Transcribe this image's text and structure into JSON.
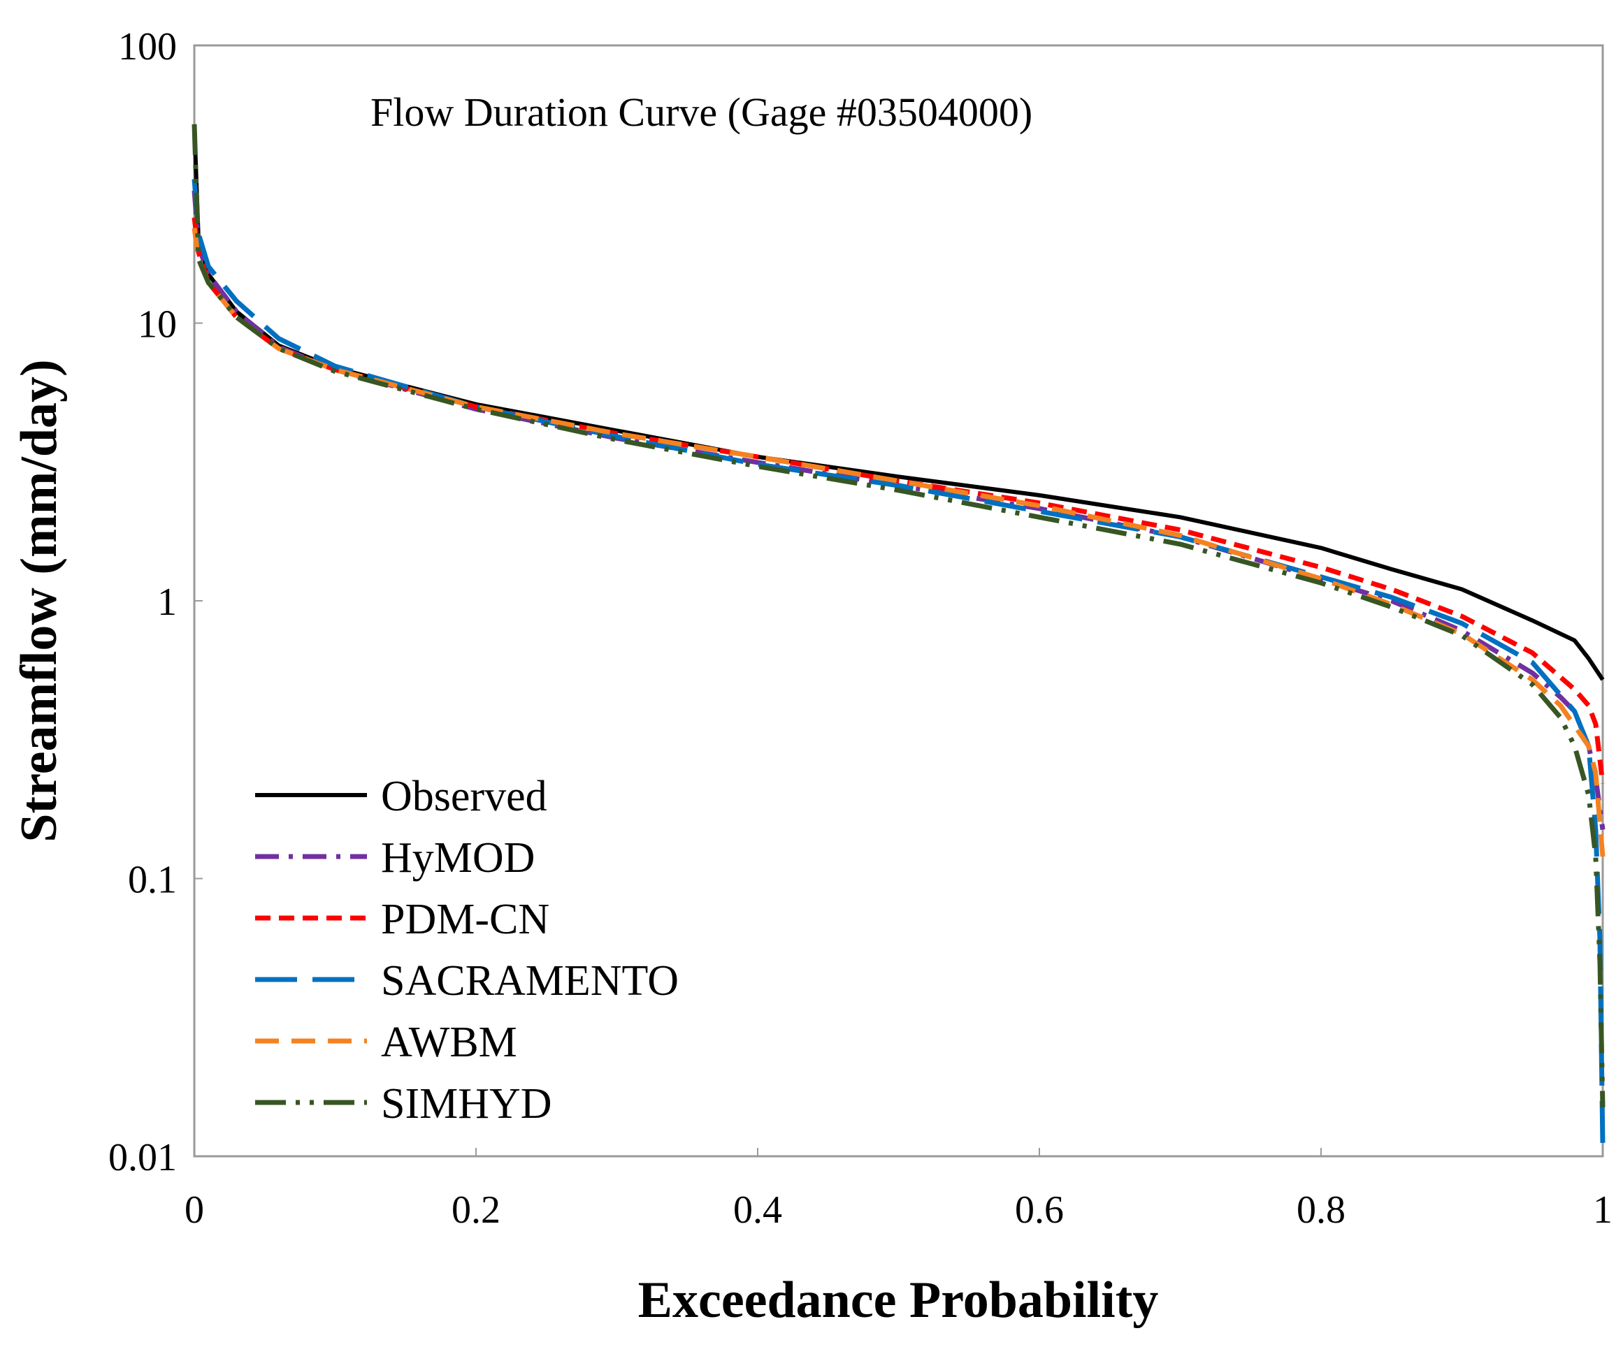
{
  "chart_data": {
    "type": "line",
    "title": "Flow Duration Curve (Gage #03504000)",
    "xlabel": "Exceedance Probability",
    "ylabel": "Streamflow (mm/day)",
    "x_scale": "linear",
    "y_scale": "log",
    "xlim": [
      0,
      1
    ],
    "ylim": [
      0.01,
      100
    ],
    "x_ticks": [
      0,
      0.2,
      0.4,
      0.6,
      0.8,
      1
    ],
    "x_tick_labels": [
      "0",
      "0.2",
      "0.4",
      "0.6",
      "0.8",
      "1"
    ],
    "y_ticks": [
      0.01,
      0.1,
      1,
      10,
      100
    ],
    "y_tick_labels": [
      "0.01",
      "0.1",
      "1",
      "10",
      "100"
    ],
    "grid": false,
    "legend_position": "bottom-left",
    "series": [
      {
        "name": "Observed",
        "color": "#000000",
        "dash": "solid",
        "points": [
          [
            0,
            52
          ],
          [
            0.003,
            20
          ],
          [
            0.01,
            15
          ],
          [
            0.03,
            11
          ],
          [
            0.06,
            8.3
          ],
          [
            0.1,
            6.9
          ],
          [
            0.2,
            5.1
          ],
          [
            0.3,
            4.1
          ],
          [
            0.4,
            3.3
          ],
          [
            0.5,
            2.8
          ],
          [
            0.6,
            2.4
          ],
          [
            0.7,
            2.0
          ],
          [
            0.8,
            1.55
          ],
          [
            0.85,
            1.3
          ],
          [
            0.9,
            1.1
          ],
          [
            0.95,
            0.85
          ],
          [
            0.98,
            0.72
          ],
          [
            0.99,
            0.62
          ],
          [
            1.0,
            0.52
          ]
        ]
      },
      {
        "name": "HyMOD",
        "color": "#7030a0",
        "dash": "dashdot",
        "points": [
          [
            0,
            30
          ],
          [
            0.003,
            19
          ],
          [
            0.01,
            15
          ],
          [
            0.03,
            11
          ],
          [
            0.06,
            8.2
          ],
          [
            0.1,
            6.8
          ],
          [
            0.2,
            4.9
          ],
          [
            0.3,
            3.85
          ],
          [
            0.4,
            3.15
          ],
          [
            0.5,
            2.6
          ],
          [
            0.6,
            2.15
          ],
          [
            0.7,
            1.7
          ],
          [
            0.8,
            1.2
          ],
          [
            0.85,
            1.0
          ],
          [
            0.9,
            0.78
          ],
          [
            0.95,
            0.55
          ],
          [
            0.97,
            0.45
          ],
          [
            0.98,
            0.4
          ],
          [
            0.99,
            0.3
          ],
          [
            0.995,
            0.23
          ],
          [
            1.0,
            0.15
          ]
        ]
      },
      {
        "name": "PDM-CN",
        "color": "#ff0000",
        "dash": "dash",
        "points": [
          [
            0,
            24
          ],
          [
            0.003,
            18
          ],
          [
            0.01,
            14
          ],
          [
            0.03,
            10.5
          ],
          [
            0.06,
            8.1
          ],
          [
            0.1,
            6.8
          ],
          [
            0.2,
            5.0
          ],
          [
            0.3,
            4.0
          ],
          [
            0.4,
            3.3
          ],
          [
            0.5,
            2.7
          ],
          [
            0.6,
            2.25
          ],
          [
            0.7,
            1.8
          ],
          [
            0.8,
            1.32
          ],
          [
            0.85,
            1.1
          ],
          [
            0.9,
            0.88
          ],
          [
            0.95,
            0.65
          ],
          [
            0.98,
            0.48
          ],
          [
            0.99,
            0.42
          ],
          [
            0.995,
            0.36
          ],
          [
            1.0,
            0.22
          ]
        ]
      },
      {
        "name": "SACRAMENTO",
        "color": "#0070c0",
        "dash": "longdash",
        "points": [
          [
            0,
            33
          ],
          [
            0.003,
            21
          ],
          [
            0.01,
            16
          ],
          [
            0.03,
            12
          ],
          [
            0.06,
            8.8
          ],
          [
            0.1,
            7.0
          ],
          [
            0.2,
            5.0
          ],
          [
            0.3,
            3.9
          ],
          [
            0.4,
            3.1
          ],
          [
            0.5,
            2.6
          ],
          [
            0.6,
            2.1
          ],
          [
            0.7,
            1.7
          ],
          [
            0.8,
            1.22
          ],
          [
            0.85,
            1.03
          ],
          [
            0.9,
            0.83
          ],
          [
            0.95,
            0.6
          ],
          [
            0.98,
            0.4
          ],
          [
            0.99,
            0.3
          ],
          [
            0.995,
            0.15
          ],
          [
            0.998,
            0.06
          ],
          [
            1.0,
            0.011
          ]
        ]
      },
      {
        "name": "AWBM",
        "color": "#f58220",
        "dash": "mediumdash",
        "points": [
          [
            0,
            22
          ],
          [
            0.003,
            17
          ],
          [
            0.01,
            14
          ],
          [
            0.03,
            10.5
          ],
          [
            0.06,
            8.1
          ],
          [
            0.1,
            6.8
          ],
          [
            0.2,
            5.0
          ],
          [
            0.3,
            4.0
          ],
          [
            0.4,
            3.3
          ],
          [
            0.5,
            2.7
          ],
          [
            0.6,
            2.2
          ],
          [
            0.7,
            1.72
          ],
          [
            0.8,
            1.2
          ],
          [
            0.85,
            0.97
          ],
          [
            0.9,
            0.76
          ],
          [
            0.95,
            0.52
          ],
          [
            0.97,
            0.42
          ],
          [
            0.99,
            0.3
          ],
          [
            0.995,
            0.24
          ],
          [
            1.0,
            0.12
          ]
        ]
      },
      {
        "name": "SIMHYD",
        "color": "#375623",
        "dash": "dashdotdot",
        "points": [
          [
            0,
            52
          ],
          [
            0.003,
            17
          ],
          [
            0.01,
            14
          ],
          [
            0.03,
            10.5
          ],
          [
            0.06,
            8.1
          ],
          [
            0.1,
            6.7
          ],
          [
            0.2,
            4.9
          ],
          [
            0.3,
            3.8
          ],
          [
            0.4,
            3.05
          ],
          [
            0.5,
            2.5
          ],
          [
            0.6,
            2.0
          ],
          [
            0.7,
            1.6
          ],
          [
            0.8,
            1.16
          ],
          [
            0.85,
            0.95
          ],
          [
            0.9,
            0.75
          ],
          [
            0.95,
            0.5
          ],
          [
            0.97,
            0.38
          ],
          [
            0.98,
            0.3
          ],
          [
            0.99,
            0.2
          ],
          [
            0.995,
            0.12
          ],
          [
            0.998,
            0.05
          ],
          [
            1.0,
            0.015
          ]
        ]
      }
    ]
  }
}
